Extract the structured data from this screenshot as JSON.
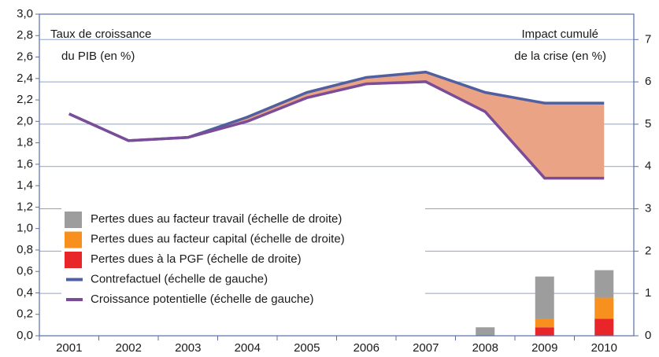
{
  "chart_data": {
    "type": "combo",
    "annotations": [
      "Taux de croissance",
      "du PIB (en %)",
      "Impact cumulé",
      "de la crise (en %)"
    ],
    "categories": [
      "2001",
      "2002",
      "2003",
      "2004",
      "2005",
      "2006",
      "2007",
      "2008",
      "2009",
      "2010"
    ],
    "series": [
      {
        "name": "Pertes dues au facteur travail (échelle de droite)",
        "type": "bar",
        "axis": "y2",
        "color": "#9d9d9d",
        "values": [
          null,
          null,
          null,
          null,
          null,
          null,
          null,
          0.2,
          1.0,
          0.65
        ]
      },
      {
        "name": "Pertes dues au facteur capital (échelle de droite)",
        "type": "bar",
        "axis": "y2",
        "color": "#f7901e",
        "values": [
          null,
          null,
          null,
          null,
          null,
          null,
          null,
          null,
          0.2,
          0.5
        ]
      },
      {
        "name": "Pertes dues à la PGF (échelle de droite)",
        "type": "bar",
        "axis": "y2",
        "color": "#e8262a",
        "values": [
          null,
          null,
          null,
          null,
          null,
          null,
          null,
          null,
          0.2,
          0.4
        ]
      },
      {
        "name": "Contrefactuel (échelle de gauche)",
        "type": "line",
        "axis": "y",
        "color": "#4f5f9f",
        "values": [
          2.07,
          1.82,
          1.85,
          2.04,
          2.27,
          2.41,
          2.46,
          2.27,
          2.17,
          2.17
        ]
      },
      {
        "name": "Croissance potentielle (échelle de gauche)",
        "type": "line",
        "axis": "y",
        "color": "#7b4c98",
        "values": [
          2.07,
          1.82,
          1.85,
          2.0,
          2.22,
          2.35,
          2.37,
          2.09,
          1.47,
          1.47
        ]
      }
    ],
    "fill_between_color": "#eaa385",
    "ylim": [
      0,
      3.0
    ],
    "yticks": [
      {
        "value": 0,
        "label": "0,0"
      },
      {
        "value": 0.2,
        "label": "0,2"
      },
      {
        "value": 0.4,
        "label": "0,4"
      },
      {
        "value": 0.6,
        "label": "0,6"
      },
      {
        "value": 0.8,
        "label": "0,8"
      },
      {
        "value": 1.0,
        "label": "1,0"
      },
      {
        "value": 1.2,
        "label": "1,2"
      },
      {
        "value": 1.4,
        "label": "1,4"
      },
      {
        "value": 1.6,
        "label": "1,6"
      },
      {
        "value": 1.8,
        "label": "1,8"
      },
      {
        "value": 2.0,
        "label": "2,0"
      },
      {
        "value": 2.2,
        "label": "2,2"
      },
      {
        "value": 2.4,
        "label": "2,4"
      },
      {
        "value": 2.6,
        "label": "2,6"
      },
      {
        "value": 2.8,
        "label": "2,8"
      },
      {
        "value": 3.0,
        "label": "3,0"
      }
    ],
    "y2lim": [
      0,
      7.6
    ],
    "y2ticks": [
      0,
      1,
      2,
      3,
      4,
      5,
      6,
      7
    ],
    "grid": true
  }
}
